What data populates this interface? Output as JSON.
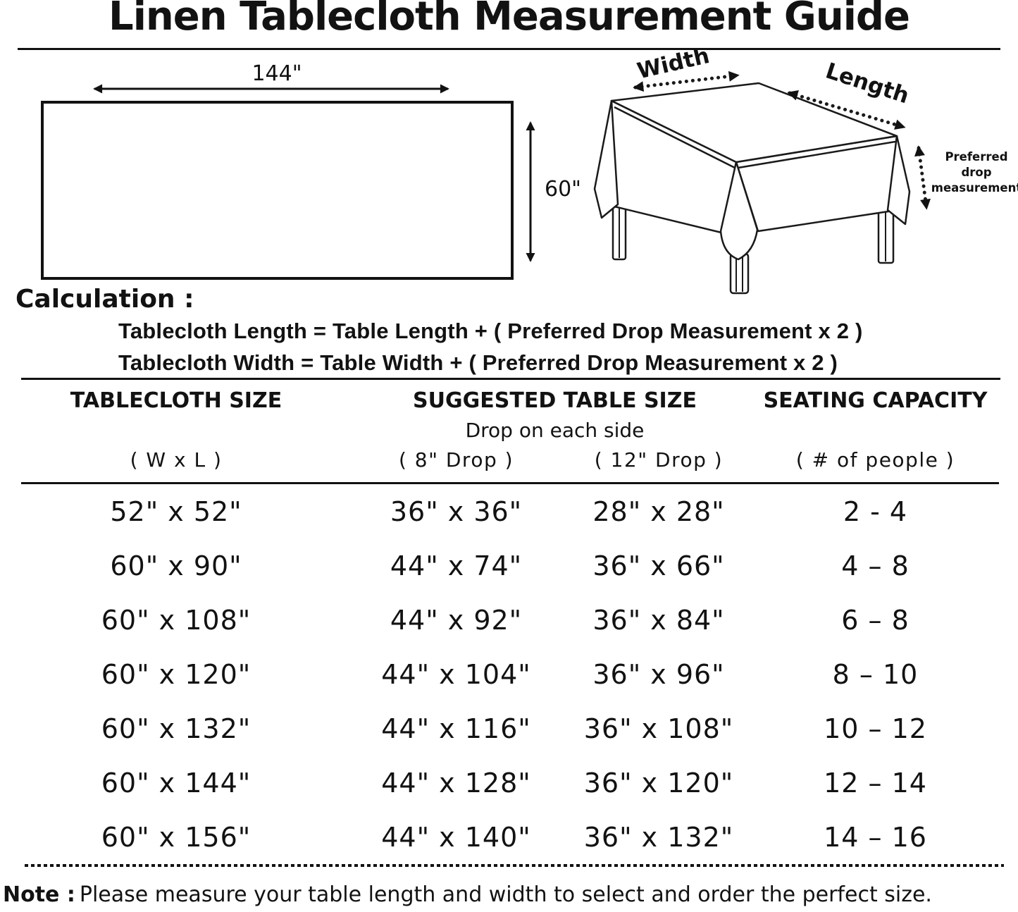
{
  "title": "Linen Tablecloth Measurement Guide",
  "flat_diagram": {
    "width_label": "144\"",
    "height_label": "60\""
  },
  "illustration": {
    "width_label": "Width",
    "length_label": "Length",
    "drop_label_lines": [
      "Preferred",
      "drop",
      "measurement"
    ]
  },
  "calculation": {
    "heading": "Calculation :",
    "lines": [
      "Tablecloth Length = Table Length + ( Preferred Drop Measurement x 2 )",
      "Tablecloth Width = Table Width + ( Preferred Drop Measurement x 2 )"
    ]
  },
  "size_chart": {
    "headers": [
      "TABLECLOTH SIZE",
      "SUGGESTED TABLE SIZE",
      "SEATING CAPACITY"
    ],
    "drop_note": "Drop on each side",
    "sub_headers": [
      "( W x L )",
      "( 8\" Drop )",
      "( 12\" Drop )",
      "( # of people )"
    ],
    "rows": [
      [
        "52\" x 52\"",
        "36\" x 36\"",
        "28\" x 28\"",
        "2 - 4"
      ],
      [
        "60\" x 90\"",
        "44\" x 74\"",
        "36\" x 66\"",
        "4 – 8"
      ],
      [
        "60\" x 108\"",
        "44\" x 92\"",
        "36\" x 84\"",
        "6 – 8"
      ],
      [
        "60\" x 120\"",
        "44\" x 104\"",
        "36\" x 96\"",
        "8 – 10"
      ],
      [
        "60\" x 132\"",
        "44\" x 116\"",
        "36\" x 108\"",
        "10 – 12"
      ],
      [
        "60\" x 144\"",
        "44\" x 128\"",
        "36\" x 120\"",
        "12 – 14"
      ],
      [
        "60\" x 156\"",
        "44\" x 140\"",
        "36\" x 132\"",
        "14 – 16"
      ]
    ]
  },
  "note": {
    "label": "Note :",
    "text": "Please measure your table length and width to select and order the perfect size."
  }
}
